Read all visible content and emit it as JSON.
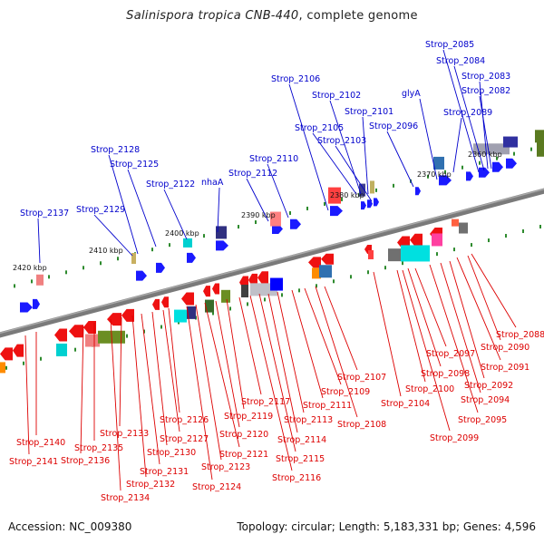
{
  "title": {
    "organism": "Salinispora tropica CNB-440",
    "suffix": ", complete genome"
  },
  "footer": {
    "accession_label": "Accession:",
    "accession": "NC_009380",
    "topology_label": "Topology:",
    "topology": "circular",
    "length_label": "Length:",
    "length": "5,183,331 bp",
    "genes_label": "Genes:",
    "genes": "4,596"
  },
  "colors": {
    "forward_label": "#0000cc",
    "reverse_label": "#dd0000",
    "forward_gene": "#1a1aff",
    "reverse_gene": "#ee1111",
    "backbone": "#7a7a7a",
    "tick_green": "#2e8b2e"
  },
  "scale_labels": [
    "2360 kbp",
    "2370 kbp",
    "2380 kbp",
    "2390 kbp",
    "2400 kbp",
    "2410 kbp",
    "2420 kbp"
  ],
  "forward_genes": [
    "Strop_2082",
    "Strop_2083",
    "Strop_2084",
    "Strop_2085",
    "Strop_2089",
    "glyA",
    "Strop_2096",
    "Strop_2101",
    "Strop_2102",
    "Strop_2103",
    "Strop_2105",
    "Strop_2106",
    "Strop_2110",
    "Strop_2112",
    "nhaA",
    "Strop_2122",
    "Strop_2125",
    "Strop_2128",
    "Strop_2129",
    "Strop_2137"
  ],
  "reverse_genes": [
    "Strop_2088",
    "Strop_2090",
    "Strop_2091",
    "Strop_2092",
    "Strop_2094",
    "Strop_2095",
    "Strop_2097",
    "Strop_2098",
    "Strop_2099",
    "Strop_2100",
    "Strop_2104",
    "Strop_2107",
    "Strop_2108",
    "Strop_2109",
    "Strop_2111",
    "Strop_2113",
    "Strop_2114",
    "Strop_2115",
    "Strop_2116",
    "Strop_2117",
    "Strop_2119",
    "Strop_2120",
    "Strop_2121",
    "Strop_2123",
    "Strop_2124",
    "Strop_2126",
    "Strop_2127",
    "Strop_2130",
    "Strop_2131",
    "Strop_2132",
    "Strop_2133",
    "Strop_2134",
    "Strop_2135",
    "Strop_2136",
    "Strop_2140",
    "Strop_2141"
  ]
}
